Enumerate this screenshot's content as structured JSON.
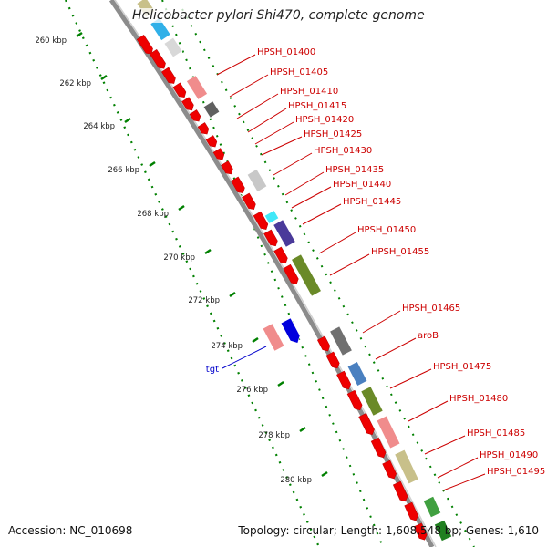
{
  "title": "Helicobacter pylori Shi470, complete genome",
  "footer": {
    "accession": "Accession: NC_010698",
    "summary": "Topology: circular; Length: 1,608,548 bp; Genes: 1,610"
  },
  "colors": {
    "backbone": "#8c8c8c",
    "gene_label": "#cc0000",
    "rna_label": "#0000cc",
    "kbp_dots": "#008000",
    "tick_text": "#222222"
  },
  "kbp_ticks": [
    {
      "label": "260 kbp",
      "kbp": 260
    },
    {
      "label": "262 kbp",
      "kbp": 262
    },
    {
      "label": "264 kbp",
      "kbp": 264
    },
    {
      "label": "266 kbp",
      "kbp": 266
    },
    {
      "label": "268 kbp",
      "kbp": 268
    },
    {
      "label": "270 kbp",
      "kbp": 270
    },
    {
      "label": "272 kbp",
      "kbp": 272
    },
    {
      "label": "274 kbp",
      "kbp": 274
    },
    {
      "label": "276 kbp",
      "kbp": 276
    },
    {
      "label": "278 kbp",
      "kbp": 278
    },
    {
      "label": "280 kbp",
      "kbp": 280
    }
  ],
  "gene_labels": [
    "HPSH_01400",
    "HPSH_01405",
    "HPSH_01410",
    "HPSH_01415",
    "HPSH_01420",
    "HPSH_01425",
    "HPSH_01430",
    "HPSH_01435",
    "HPSH_01440",
    "HPSH_01445",
    "HPSH_01450",
    "HPSH_01455",
    "HPSH_01465",
    "aroB",
    "HPSH_01475",
    "HPSH_01480",
    "HPSH_01485",
    "HPSH_01490",
    "HPSH_01495"
  ],
  "rna_label": "tgt"
}
